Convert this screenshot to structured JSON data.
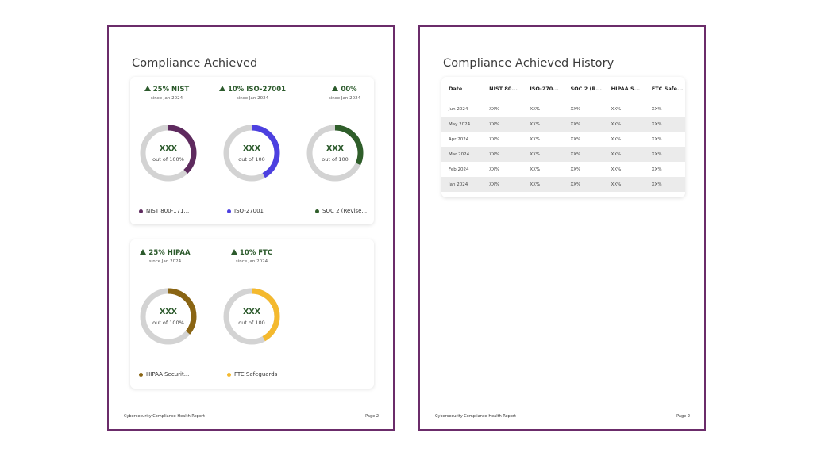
{
  "colors": {
    "page_border": "#6b2c6a",
    "nist": "#5e2a5e",
    "iso": "#4c40e0",
    "soc": "#2f5e2a",
    "hipaa": "#8a6514",
    "ftc": "#f4b92e",
    "track": "#d3d3d3",
    "positive": "#2c5a2c"
  },
  "left_page": {
    "title": "Compliance Achieved",
    "footer_left": "Cybersecurity Compliance Health Report",
    "footer_right": "Page 2",
    "card_top": {
      "metrics": [
        {
          "head": "25% NIST",
          "since": "since Jan 2024"
        },
        {
          "head": "10% ISO-27001",
          "since": "since Jan 2024"
        },
        {
          "head": "00%",
          "since": "since Jan 2024"
        }
      ],
      "donuts": [
        {
          "value": "XXX",
          "sub": "out of 100%",
          "fill": 0.38,
          "color": "#5e2a5e",
          "legend": "NIST 800-171..."
        },
        {
          "value": "XXX",
          "sub": "out of 100",
          "fill": 0.42,
          "color": "#4c40e0",
          "legend": "ISO-27001"
        },
        {
          "value": "XXX",
          "sub": "out of 100",
          "fill": 0.32,
          "color": "#2f5e2a",
          "legend": "SOC 2 (Revise..."
        }
      ]
    },
    "card_bottom": {
      "metrics": [
        {
          "head": "25% HIPAA",
          "since": "since Jan 2024"
        },
        {
          "head": "10% FTC",
          "since": "since Jan 2024"
        }
      ],
      "donuts": [
        {
          "value": "XXX",
          "sub": "out of 100%",
          "fill": 0.36,
          "color": "#8a6514",
          "legend": "HIPAA Securit..."
        },
        {
          "value": "XXX",
          "sub": "out of 100",
          "fill": 0.42,
          "color": "#f4b92e",
          "legend": "FTC Safeguards"
        }
      ]
    }
  },
  "right_page": {
    "title": "Compliance Achieved History",
    "footer_left": "Cybersecurity Compliance Health Report",
    "footer_right": "Page 2",
    "table": {
      "headers": [
        "Date",
        "NIST 80...",
        "ISO-270...",
        "SOC 2 (R...",
        "HIPAA S...",
        "FTC Safe..."
      ],
      "rows": [
        [
          "Jun 2024",
          "XX%",
          "XX%",
          "XX%",
          "XX%",
          "XX%"
        ],
        [
          "May 2024",
          "XX%",
          "XX%",
          "XX%",
          "XX%",
          "XX%"
        ],
        [
          "Apr 2024",
          "XX%",
          "XX%",
          "XX%",
          "XX%",
          "XX%"
        ],
        [
          "Mar 2024",
          "XX%",
          "XX%",
          "XX%",
          "XX%",
          "XX%"
        ],
        [
          "Feb 2024",
          "XX%",
          "XX%",
          "XX%",
          "XX%",
          "XX%"
        ],
        [
          "Jan 2024",
          "XX%",
          "XX%",
          "XX%",
          "XX%",
          "XX%"
        ]
      ]
    }
  }
}
